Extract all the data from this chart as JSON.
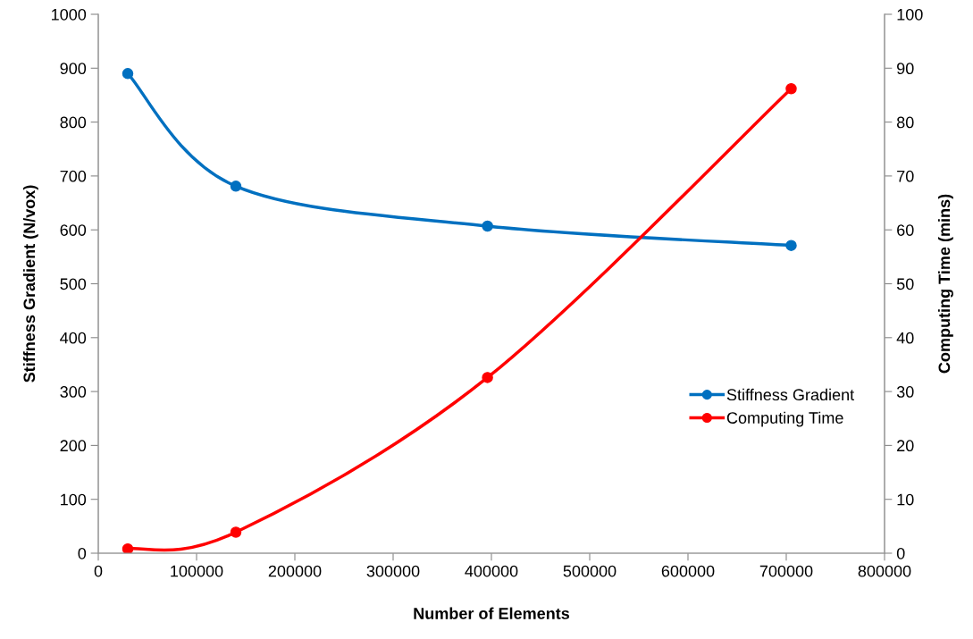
{
  "chart_data": {
    "type": "line",
    "xlabel": "Number of Elements",
    "ylabel": "Stiffness Gradient (N/vox)",
    "y2label": "Computing Time (mins)",
    "series": [
      {
        "name": "Stiffness Gradient",
        "color": "#0070c0",
        "x": [
          30000,
          140000,
          396000,
          705000
        ],
        "values": [
          890,
          681,
          607,
          571
        ]
      },
      {
        "name": "Computing Time",
        "color": "#ff0000",
        "axis": "y2",
        "x": [
          30000,
          140000,
          396000,
          705000
        ],
        "values": [
          0.8,
          3.9,
          32.6,
          86.2
        ]
      }
    ],
    "xlim": [
      0,
      800000
    ],
    "xticks": [
      0,
      100000,
      200000,
      300000,
      400000,
      500000,
      600000,
      700000,
      800000
    ],
    "ylim": [
      0,
      1000
    ],
    "yticks": [
      0,
      100,
      200,
      300,
      400,
      500,
      600,
      700,
      800,
      900,
      1000
    ],
    "y2lim": [
      0,
      100
    ],
    "y2ticks": [
      0,
      10,
      20,
      30,
      40,
      50,
      60,
      70,
      80,
      90,
      100
    ],
    "grid": false,
    "legend": "right",
    "marker": "circle",
    "line_style": "solid"
  }
}
